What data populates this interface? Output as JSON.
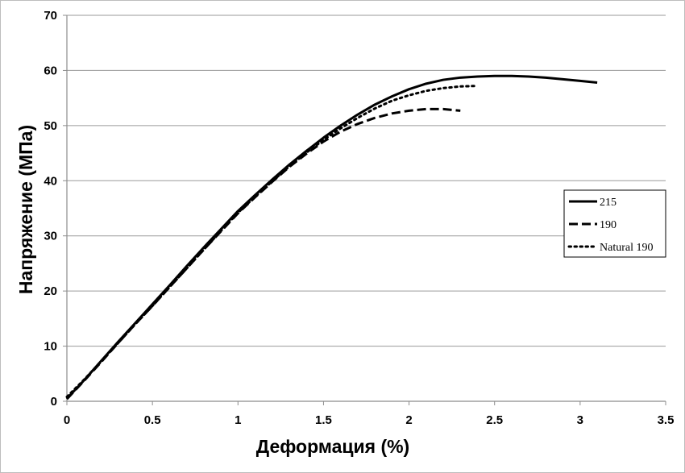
{
  "chart_data": {
    "type": "line",
    "title": "",
    "xlabel": "Деформация (%)",
    "ylabel": "Напряжение (МПа)",
    "xlim": [
      0,
      3.5
    ],
    "ylim": [
      0,
      70
    ],
    "x_ticks": [
      "0",
      "0.5",
      "1",
      "1.5",
      "2",
      "2.5",
      "3",
      "3.5"
    ],
    "y_ticks": [
      "0",
      "10",
      "20",
      "30",
      "40",
      "50",
      "60",
      "70"
    ],
    "grid": "horizontal",
    "legend_position": "right",
    "series": [
      {
        "name": "215",
        "style": "solid",
        "color": "#000000",
        "x": [
          0,
          0.1,
          0.2,
          0.3,
          0.4,
          0.5,
          0.6,
          0.7,
          0.8,
          0.9,
          1.0,
          1.1,
          1.2,
          1.3,
          1.4,
          1.5,
          1.6,
          1.7,
          1.8,
          1.9,
          2.0,
          2.1,
          2.2,
          2.3,
          2.4,
          2.5,
          2.6,
          2.7,
          2.8,
          2.9,
          3.0,
          3.1
        ],
        "y": [
          0.5,
          3.8,
          7.3,
          10.8,
          14.2,
          17.6,
          21.0,
          24.5,
          27.9,
          31.2,
          34.5,
          37.4,
          40.2,
          42.9,
          45.4,
          47.8,
          50.0,
          52.0,
          53.8,
          55.3,
          56.6,
          57.6,
          58.3,
          58.7,
          58.9,
          59.0,
          59.0,
          58.9,
          58.7,
          58.4,
          58.1,
          57.8
        ]
      },
      {
        "name": "190",
        "style": "dashed",
        "color": "#000000",
        "x": [
          0,
          0.1,
          0.2,
          0.3,
          0.4,
          0.5,
          0.6,
          0.7,
          0.8,
          0.9,
          1.0,
          1.1,
          1.2,
          1.3,
          1.4,
          1.5,
          1.6,
          1.7,
          1.8,
          1.9,
          2.0,
          2.1,
          2.2,
          2.3
        ],
        "y": [
          0.4,
          3.7,
          7.1,
          10.6,
          14.0,
          17.3,
          20.7,
          24.1,
          27.5,
          30.8,
          34.1,
          37.0,
          39.8,
          42.5,
          44.9,
          47.1,
          48.9,
          50.3,
          51.4,
          52.2,
          52.7,
          53.0,
          53.0,
          52.7
        ]
      },
      {
        "name": "Natural 190",
        "style": "dotted",
        "color": "#000000",
        "x": [
          0,
          0.1,
          0.2,
          0.3,
          0.4,
          0.5,
          0.6,
          0.7,
          0.8,
          0.9,
          1.0,
          1.1,
          1.2,
          1.3,
          1.4,
          1.5,
          1.6,
          1.7,
          1.8,
          1.9,
          2.0,
          2.1,
          2.2,
          2.3,
          2.4
        ],
        "y": [
          0.8,
          3.9,
          7.2,
          10.6,
          14.0,
          17.3,
          20.7,
          24.1,
          27.5,
          30.9,
          34.2,
          37.1,
          39.9,
          42.6,
          45.1,
          47.4,
          49.5,
          51.4,
          53.1,
          54.5,
          55.5,
          56.3,
          56.8,
          57.1,
          57.2
        ]
      }
    ]
  }
}
